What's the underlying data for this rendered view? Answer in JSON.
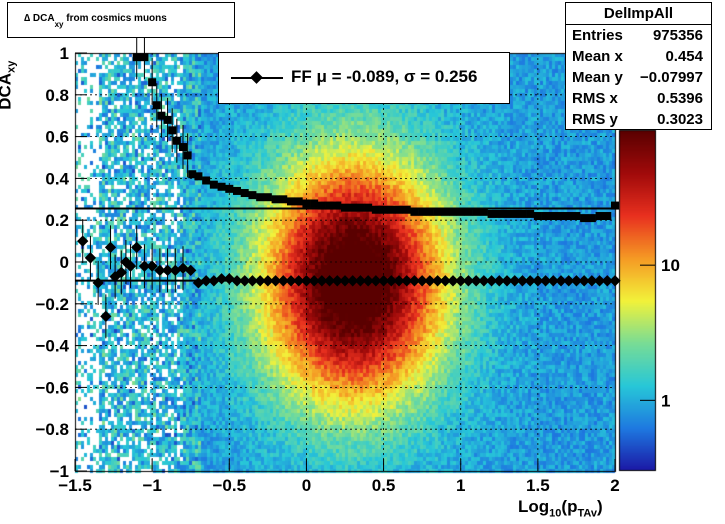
{
  "histogram": {
    "title_prefix": "∆ DCA",
    "title_sub": "xy",
    "title_suffix": "from cosmics muons"
  },
  "stats": {
    "name": "DelImpAll",
    "rows": [
      {
        "k": "Entries",
        "v": "975356"
      },
      {
        "k": "Mean x",
        "v": "0.454"
      },
      {
        "k": "Mean y",
        "v": "−0.07997"
      },
      {
        "k": "RMS x",
        "v": "0.5396"
      },
      {
        "k": "RMS y",
        "v": "0.3023"
      }
    ]
  },
  "legend": {
    "label": "FF μ = -0.089, σ =   0.256"
  },
  "axes": {
    "xlabel_main": "Log",
    "xlabel_sub1": "10",
    "xlabel_mid": "(p",
    "xlabel_sub2": "TAv",
    "xlabel_end": ")",
    "ylabel_main": "DCA",
    "ylabel_sub": "xy"
  },
  "colors": {
    "dark_red": "#8b0000",
    "red": "#e8301f",
    "orange": "#f59a24",
    "yellow": "#f2f23a",
    "cyan": "#27c7d8",
    "blue": "#1e78e0",
    "navy": "#1b16a4"
  },
  "chart_data": {
    "type": "heatmap",
    "xlim": [
      -1.5,
      2.0
    ],
    "ylim": [
      -1.0,
      1.0
    ],
    "x_ticks": [
      -1.5,
      -1,
      -0.5,
      0,
      0.5,
      1,
      1.5,
      2
    ],
    "x_tick_labels": [
      "−1.5",
      "−1",
      "−0.5",
      "0",
      "0.5",
      "1",
      "1.5",
      "2"
    ],
    "y_ticks": [
      -1,
      -0.8,
      -0.6,
      -0.4,
      -0.2,
      0,
      0.2,
      0.4,
      0.6,
      0.8,
      1
    ],
    "y_tick_labels": [
      "−1",
      "−0.8",
      "−0.6",
      "−0.4",
      "−0.2",
      "0",
      "0.2",
      "0.4",
      "0.6",
      "0.8",
      "1"
    ],
    "grid": true,
    "colorbar": {
      "scale": "log",
      "ticks": [
        1,
        10
      ],
      "tick_labels": [
        "1",
        "10"
      ]
    },
    "density_peak": {
      "x": 0.3,
      "y": -0.08
    },
    "mean_line_y": -0.089,
    "sigma_line_y": 0.256,
    "series": [
      {
        "name": "FF",
        "marker": "diamond",
        "x": [
          -1.45,
          -1.4,
          -1.35,
          -1.3,
          -1.27,
          -1.24,
          -1.2,
          -1.17,
          -1.14,
          -1.1,
          -1.05,
          -1.0,
          -0.95,
          -0.9,
          -0.85,
          -0.8,
          -0.75,
          -0.7,
          -0.65,
          -0.6,
          -0.55,
          -0.5,
          -0.45,
          -0.4,
          -0.35,
          -0.3,
          -0.25,
          -0.2,
          -0.15,
          -0.1,
          -0.05,
          0.0,
          0.05,
          0.1,
          0.15,
          0.2,
          0.25,
          0.3,
          0.35,
          0.4,
          0.45,
          0.5,
          0.55,
          0.6,
          0.65,
          0.7,
          0.75,
          0.8,
          0.85,
          0.9,
          0.95,
          1.0,
          1.05,
          1.1,
          1.15,
          1.2,
          1.25,
          1.3,
          1.35,
          1.4,
          1.45,
          1.5,
          1.55,
          1.6,
          1.65,
          1.7,
          1.75,
          1.8,
          1.85,
          1.9,
          1.95,
          2.0
        ],
        "y": [
          0.1,
          0.02,
          -0.1,
          -0.26,
          0.07,
          -0.07,
          -0.05,
          0.0,
          -0.02,
          0.07,
          -0.02,
          -0.02,
          -0.04,
          -0.04,
          -0.04,
          -0.03,
          -0.04,
          -0.1,
          -0.09,
          -0.09,
          -0.08,
          -0.08,
          -0.09,
          -0.09,
          -0.09,
          -0.09,
          -0.09,
          -0.09,
          -0.09,
          -0.09,
          -0.09,
          -0.09,
          -0.09,
          -0.09,
          -0.09,
          -0.09,
          -0.09,
          -0.09,
          -0.09,
          -0.09,
          -0.09,
          -0.09,
          -0.09,
          -0.09,
          -0.09,
          -0.09,
          -0.09,
          -0.09,
          -0.09,
          -0.09,
          -0.09,
          -0.09,
          -0.09,
          -0.09,
          -0.09,
          -0.09,
          -0.09,
          -0.09,
          -0.09,
          -0.09,
          -0.09,
          -0.09,
          -0.09,
          -0.09,
          -0.09,
          -0.09,
          -0.09,
          -0.09,
          -0.09,
          -0.09,
          -0.09,
          -0.09
        ]
      },
      {
        "marker": "square",
        "x": [
          -1.1,
          -1.05,
          -1.0,
          -0.97,
          -0.94,
          -0.9,
          -0.87,
          -0.84,
          -0.8,
          -0.77,
          -0.74,
          -0.7,
          -0.65,
          -0.6,
          -0.55,
          -0.5,
          -0.45,
          -0.4,
          -0.35,
          -0.3,
          -0.25,
          -0.2,
          -0.15,
          -0.1,
          -0.05,
          0.0,
          0.05,
          0.1,
          0.15,
          0.2,
          0.25,
          0.3,
          0.35,
          0.4,
          0.45,
          0.5,
          0.55,
          0.6,
          0.65,
          0.7,
          0.75,
          0.8,
          0.85,
          0.9,
          0.95,
          1.0,
          1.05,
          1.1,
          1.15,
          1.2,
          1.25,
          1.3,
          1.35,
          1.4,
          1.45,
          1.5,
          1.55,
          1.6,
          1.65,
          1.7,
          1.75,
          1.8,
          1.85,
          1.9,
          1.95,
          2.0
        ],
        "y": [
          0.98,
          0.98,
          0.86,
          0.75,
          0.7,
          0.68,
          0.63,
          0.58,
          0.55,
          0.51,
          0.42,
          0.41,
          0.39,
          0.37,
          0.36,
          0.35,
          0.34,
          0.33,
          0.32,
          0.31,
          0.31,
          0.3,
          0.3,
          0.29,
          0.29,
          0.28,
          0.28,
          0.27,
          0.27,
          0.27,
          0.26,
          0.26,
          0.26,
          0.26,
          0.25,
          0.25,
          0.25,
          0.25,
          0.25,
          0.24,
          0.24,
          0.24,
          0.24,
          0.24,
          0.24,
          0.24,
          0.24,
          0.24,
          0.24,
          0.23,
          0.23,
          0.23,
          0.23,
          0.23,
          0.23,
          0.22,
          0.22,
          0.22,
          0.22,
          0.22,
          0.22,
          0.21,
          0.21,
          0.22,
          0.22,
          0.27
        ]
      }
    ]
  }
}
